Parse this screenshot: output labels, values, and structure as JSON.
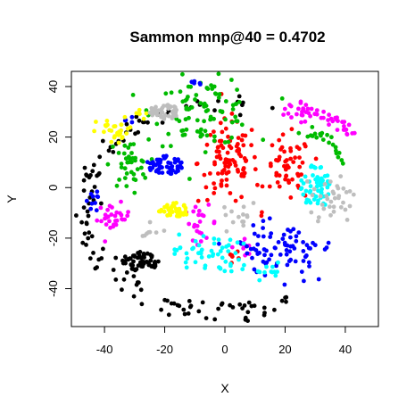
{
  "chart_data": {
    "type": "scatter",
    "title": "Sammon mnp@40 = 0.4702",
    "xlabel": "X",
    "ylabel": "Y",
    "xlim": [
      -51,
      51
    ],
    "ylim": [
      -55,
      46
    ],
    "xticks": [
      -40,
      -20,
      0,
      20,
      40
    ],
    "yticks": [
      -40,
      -20,
      0,
      20,
      40
    ],
    "grid": false,
    "legend": "none",
    "series": [
      {
        "color": "#000000",
        "shape": "arc",
        "cx": 0,
        "cy": -8,
        "rx": 46,
        "ry": 42,
        "a0": 75,
        "a1": 300,
        "n": 110,
        "jitter": 2.2
      },
      {
        "color": "#000000",
        "shape": "ellipse",
        "cx": -28,
        "cy": -29,
        "rx": 6,
        "ry": 4,
        "n": 60
      },
      {
        "color": "#000000",
        "shape": "blob",
        "cx": -45,
        "cy": 5,
        "rx": 3,
        "ry": 3,
        "n": 6
      },
      {
        "color": "#000000",
        "shape": "blob",
        "cx": 6,
        "cy": -47,
        "rx": 6,
        "ry": 3,
        "n": 10
      },
      {
        "color": "#ff00ff",
        "shape": "arc",
        "cx": 27,
        "cy": 10,
        "rx": 17,
        "ry": 20,
        "a0": 40,
        "a1": 110,
        "n": 50,
        "jitter": 1.6
      },
      {
        "color": "#ff00ff",
        "shape": "blob",
        "cx": -37,
        "cy": -12,
        "rx": 5,
        "ry": 5,
        "n": 30
      },
      {
        "color": "#ff00ff",
        "shape": "blob",
        "cx": -8,
        "cy": -14,
        "rx": 5,
        "ry": 6,
        "n": 22
      },
      {
        "color": "#ff00ff",
        "shape": "blob",
        "cx": 6,
        "cy": -23,
        "rx": 4,
        "ry": 4,
        "n": 10
      },
      {
        "color": "#ff0000",
        "shape": "blob",
        "cx": 1,
        "cy": 10,
        "rx": 9,
        "ry": 15,
        "n": 95
      },
      {
        "color": "#ff0000",
        "shape": "blob",
        "cx": 21,
        "cy": 7,
        "rx": 7,
        "ry": 12,
        "n": 55
      },
      {
        "color": "#ff0000",
        "shape": "blob",
        "cx": 4,
        "cy": -27,
        "rx": 3,
        "ry": 3,
        "n": 6
      },
      {
        "color": "#00bb00",
        "shape": "blob",
        "cx": -7,
        "cy": 30,
        "rx": 15,
        "ry": 12,
        "n": 90
      },
      {
        "color": "#00bb00",
        "shape": "blob",
        "cx": -32,
        "cy": 9,
        "rx": 6,
        "ry": 9,
        "n": 40
      },
      {
        "color": "#00bb00",
        "shape": "arc",
        "cx": 27,
        "cy": 8,
        "rx": 12,
        "ry": 14,
        "a0": 10,
        "a1": 90,
        "n": 22,
        "jitter": 1.2
      },
      {
        "color": "#0000ff",
        "shape": "ellipse",
        "cx": -20,
        "cy": 9,
        "rx": 6,
        "ry": 4,
        "n": 60
      },
      {
        "color": "#0000ff",
        "shape": "blob",
        "cx": 20,
        "cy": -24,
        "rx": 14,
        "ry": 9,
        "n": 80
      },
      {
        "color": "#0000ff",
        "shape": "blob",
        "cx": -44,
        "cy": -8,
        "rx": 3,
        "ry": 8,
        "n": 10
      },
      {
        "color": "#0000ff",
        "shape": "blob",
        "cx": -10,
        "cy": 42,
        "rx": 3,
        "ry": 2,
        "n": 6
      },
      {
        "color": "#0000ff",
        "shape": "blob",
        "cx": -32,
        "cy": 26,
        "rx": 3,
        "ry": 3,
        "n": 4
      },
      {
        "color": "#00ffff",
        "shape": "ellipse",
        "cx": 30,
        "cy": 0,
        "rx": 5,
        "ry": 9,
        "n": 55
      },
      {
        "color": "#00ffff",
        "shape": "blob",
        "cx": -6,
        "cy": -26,
        "rx": 10,
        "ry": 7,
        "n": 50
      },
      {
        "color": "#00ffff",
        "shape": "blob",
        "cx": 13,
        "cy": -33,
        "rx": 6,
        "ry": 3,
        "n": 14
      },
      {
        "color": "#ffff00",
        "shape": "blob",
        "cx": -36,
        "cy": 22,
        "rx": 6,
        "ry": 5,
        "n": 30
      },
      {
        "color": "#ffff00",
        "shape": "ellipse",
        "cx": -17,
        "cy": -9,
        "rx": 5,
        "ry": 3,
        "n": 40
      },
      {
        "color": "#ffff00",
        "shape": "blob",
        "cx": -27,
        "cy": 29,
        "rx": 3,
        "ry": 2,
        "n": 6
      },
      {
        "color": "#bebebe",
        "shape": "ellipse",
        "cx": -20,
        "cy": 30,
        "rx": 5,
        "ry": 3,
        "n": 45
      },
      {
        "color": "#bebebe",
        "shape": "blob",
        "cx": 36,
        "cy": -5,
        "rx": 6,
        "ry": 8,
        "n": 35
      },
      {
        "color": "#bebebe",
        "shape": "blob",
        "cx": 5,
        "cy": -12,
        "rx": 5,
        "ry": 5,
        "n": 14
      },
      {
        "color": "#bebebe",
        "shape": "blob",
        "cx": -25,
        "cy": -18,
        "rx": 4,
        "ry": 3,
        "n": 8
      }
    ]
  }
}
